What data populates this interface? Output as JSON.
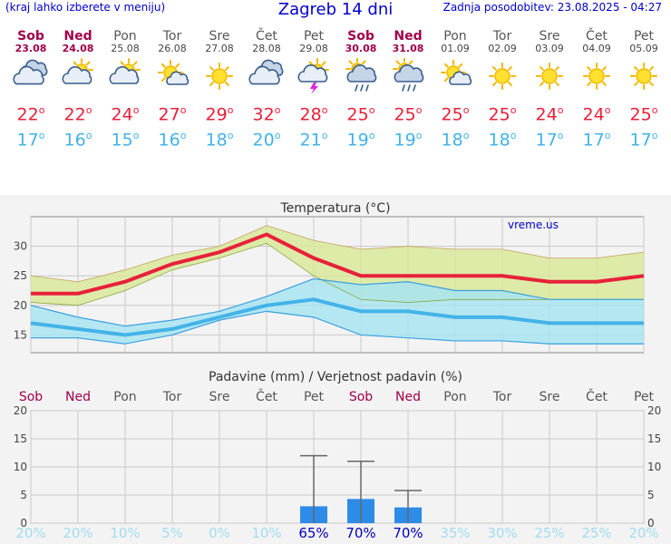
{
  "header": {
    "left_note": "(kraj lahko izberete v meniju)",
    "title": "Zagreb 14 dni",
    "updated": "Zadnja posodobitev: 23.08.2025 - 04:27"
  },
  "days": [
    {
      "name": "Sob",
      "date": "23.08",
      "weekend": true,
      "icon": "cloudy-icon",
      "max": "22",
      "min": "17"
    },
    {
      "name": "Ned",
      "date": "24.08",
      "weekend": true,
      "icon": "partly-cloudy-icon",
      "max": "22",
      "min": "16"
    },
    {
      "name": "Pon",
      "date": "25.08",
      "weekend": false,
      "icon": "partly-cloudy-icon",
      "max": "24",
      "min": "15"
    },
    {
      "name": "Tor",
      "date": "26.08",
      "weekend": false,
      "icon": "mostly-sunny-icon",
      "max": "27",
      "min": "16"
    },
    {
      "name": "Sre",
      "date": "27.08",
      "weekend": false,
      "icon": "sun-icon",
      "max": "29",
      "min": "18"
    },
    {
      "name": "Čet",
      "date": "28.08",
      "weekend": false,
      "icon": "cloudy-icon",
      "max": "32",
      "min": "20"
    },
    {
      "name": "Pet",
      "date": "29.08",
      "weekend": false,
      "icon": "thunderstorm-icon",
      "max": "28",
      "min": "21"
    },
    {
      "name": "Sob",
      "date": "30.08",
      "weekend": true,
      "icon": "sun-cloud-rain-icon",
      "max": "25",
      "min": "19"
    },
    {
      "name": "Ned",
      "date": "31.08",
      "weekend": true,
      "icon": "sun-cloud-rain-icon",
      "max": "25",
      "min": "19"
    },
    {
      "name": "Pon",
      "date": "01.09",
      "weekend": false,
      "icon": "mostly-sunny-icon",
      "max": "25",
      "min": "18"
    },
    {
      "name": "Tor",
      "date": "02.09",
      "weekend": false,
      "icon": "sun-icon",
      "max": "25",
      "min": "18"
    },
    {
      "name": "Sre",
      "date": "03.09",
      "weekend": false,
      "icon": "sun-icon",
      "max": "24",
      "min": "17"
    },
    {
      "name": "Čet",
      "date": "04.09",
      "weekend": false,
      "icon": "sun-icon",
      "max": "24",
      "min": "17"
    },
    {
      "name": "Pet",
      "date": "05.09",
      "weekend": false,
      "icon": "sun-icon",
      "max": "25",
      "min": "17"
    }
  ],
  "degree_symbol": "o",
  "colors": {
    "max": "#e8203a",
    "min": "#43b3e8",
    "weekend": "#a0004a",
    "max_band": "#d8e89a",
    "min_band": "#a8e4f0",
    "precip": "#2c8ce8",
    "prob_strong": "#0000bb",
    "prob_weak": "#a0dcf0"
  },
  "chart_data": [
    {
      "type": "line",
      "title": "Temperatura (°C)",
      "watermark": "vreme.us",
      "x": [
        "Sob",
        "Ned",
        "Pon",
        "Tor",
        "Sre",
        "Čet",
        "Pet",
        "Sob",
        "Ned",
        "Pon",
        "Tor",
        "Sre",
        "Čet",
        "Pet"
      ],
      "yticks": [
        15,
        20,
        25,
        30
      ],
      "ylim": [
        12,
        35
      ],
      "series": [
        {
          "role": "max",
          "values": [
            22,
            22,
            24,
            27,
            29,
            32,
            28,
            25,
            25,
            25,
            25,
            24,
            24,
            25
          ]
        },
        {
          "role": "max_upper",
          "values": [
            25,
            24,
            26,
            28.5,
            30,
            33.5,
            31,
            29.5,
            30,
            29.5,
            29.5,
            28,
            28,
            29
          ]
        },
        {
          "role": "max_lower",
          "values": [
            20.5,
            20,
            22.5,
            26,
            28,
            30.5,
            25,
            21,
            20.5,
            21,
            21,
            21,
            21,
            21
          ]
        },
        {
          "role": "min",
          "values": [
            17,
            16,
            15,
            16,
            18,
            20,
            21,
            19,
            19,
            18,
            18,
            17,
            17,
            17
          ]
        },
        {
          "role": "min_upper",
          "values": [
            20,
            18,
            16.5,
            17.5,
            19,
            21.5,
            24.5,
            23.5,
            24,
            22.5,
            22.5,
            21,
            21,
            21
          ]
        },
        {
          "role": "min_lower",
          "values": [
            14.5,
            14.5,
            13.5,
            15,
            17.5,
            19,
            18,
            15,
            14.5,
            14,
            14,
            13.5,
            13.5,
            13.5
          ]
        }
      ]
    },
    {
      "type": "bar",
      "title": "Padavine (mm) / Verjetnost padavin (%)",
      "categories": [
        "Sob",
        "Ned",
        "Pon",
        "Tor",
        "Sre",
        "Čet",
        "Pet",
        "Sob",
        "Ned",
        "Pon",
        "Tor",
        "Sre",
        "Čet",
        "Pet"
      ],
      "weekend": [
        true,
        true,
        false,
        false,
        false,
        false,
        false,
        true,
        true,
        false,
        false,
        false,
        false,
        false
      ],
      "values": [
        0,
        0,
        0,
        0,
        0,
        0,
        3,
        4.3,
        2.8,
        0,
        0,
        0,
        0,
        0
      ],
      "error_high": [
        0,
        0,
        0,
        0,
        0,
        0,
        12,
        11,
        5.8,
        0,
        0,
        0,
        0,
        0
      ],
      "probability": [
        "20%",
        "20%",
        "10%",
        "5%",
        "0%",
        "10%",
        "65%",
        "70%",
        "70%",
        "35%",
        "30%",
        "25%",
        "25%",
        "20%"
      ],
      "yticks": [
        0,
        5,
        10,
        15,
        20
      ],
      "ylim": [
        0,
        20
      ]
    }
  ]
}
